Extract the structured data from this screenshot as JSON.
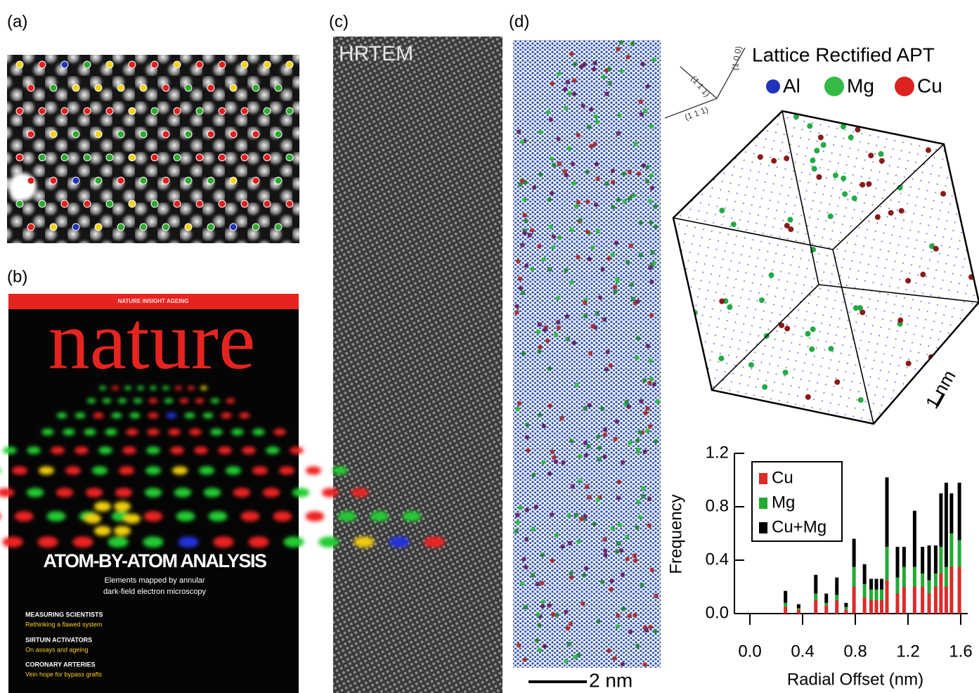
{
  "panel_labels": [
    "(a)",
    "(b)",
    "(c)",
    "(d)"
  ],
  "cover": {
    "banner": "NATURE INSIGHT AGEING",
    "masthead": "nature",
    "headline": "ATOM-BY-ATOM ANALYSIS",
    "subhead": [
      "Elements mapped by annular",
      "dark-field electron microscopy"
    ],
    "stories": [
      {
        "title": "MEASURING SCIENTISTS",
        "text": "Rethinking a flawed system"
      },
      {
        "title": "SIRTUIN ACTIVATORS",
        "text": "On assays and ageing"
      },
      {
        "title": "CORONARY ARTERIES",
        "text": "Vein hope for bypass grafts"
      }
    ]
  },
  "hrtem_label": "HRTEM",
  "scale_bars": [
    "2 nm",
    "1 nm"
  ],
  "apt": {
    "title": "Lattice Rectified APT",
    "legend": [
      {
        "label": "Al",
        "color": "#2233bb"
      },
      {
        "label": "Mg",
        "color": "#33bb44"
      },
      {
        "label": "Cu",
        "color": "#dd2222"
      }
    ],
    "directions": [
      "(1 1 1)",
      "(1 0 0)",
      "(1 1 1)"
    ]
  },
  "chart_data": {
    "type": "bar",
    "stacked": true,
    "x_label": "Radial Offset (nm)",
    "y_label": "Frequency",
    "x": [
      0.27,
      0.37,
      0.5,
      0.58,
      0.66,
      0.73,
      0.79,
      0.87,
      0.92,
      0.96,
      1.0,
      1.04,
      1.12,
      1.17,
      1.25,
      1.31,
      1.36,
      1.41,
      1.45,
      1.49,
      1.53,
      1.59
    ],
    "series": [
      {
        "name": "Cu",
        "color": "#dd2a2a",
        "values": [
          0.05,
          0.03,
          0.1,
          0.06,
          0.1,
          0.03,
          0.2,
          0.12,
          0.1,
          0.1,
          0.1,
          0.25,
          0.15,
          0.2,
          0.2,
          0.2,
          0.15,
          0.2,
          0.3,
          0.2,
          0.35,
          0.35
        ]
      },
      {
        "name": "Mg",
        "color": "#22aa33",
        "values": [
          0.03,
          0.01,
          0.05,
          0.02,
          0.04,
          0.02,
          0.15,
          0.1,
          0.08,
          0.08,
          0.08,
          0.25,
          0.12,
          0.15,
          0.15,
          0.1,
          0.1,
          0.1,
          0.2,
          0.15,
          0.25,
          0.2
        ]
      },
      {
        "name": "Cu+Mg",
        "color": "#000000",
        "values": [
          0.09,
          0.03,
          0.14,
          0.07,
          0.13,
          0.03,
          0.21,
          0.15,
          0.08,
          0.08,
          0.08,
          0.52,
          0.23,
          0.15,
          0.42,
          0.2,
          0.26,
          0.21,
          0.4,
          0.63,
          0.3,
          0.43
        ]
      }
    ],
    "xlim": [
      0,
      1.6
    ],
    "xticks": [
      {
        "value": 0,
        "label": "0.0"
      },
      0.4,
      0.8,
      1.2,
      1.6
    ],
    "ylim": [
      0,
      1.2
    ],
    "yticks": [
      {
        "value": 0,
        "label": "0.0"
      },
      0.4,
      0.8,
      1.2
    ],
    "legend": "upper left"
  }
}
